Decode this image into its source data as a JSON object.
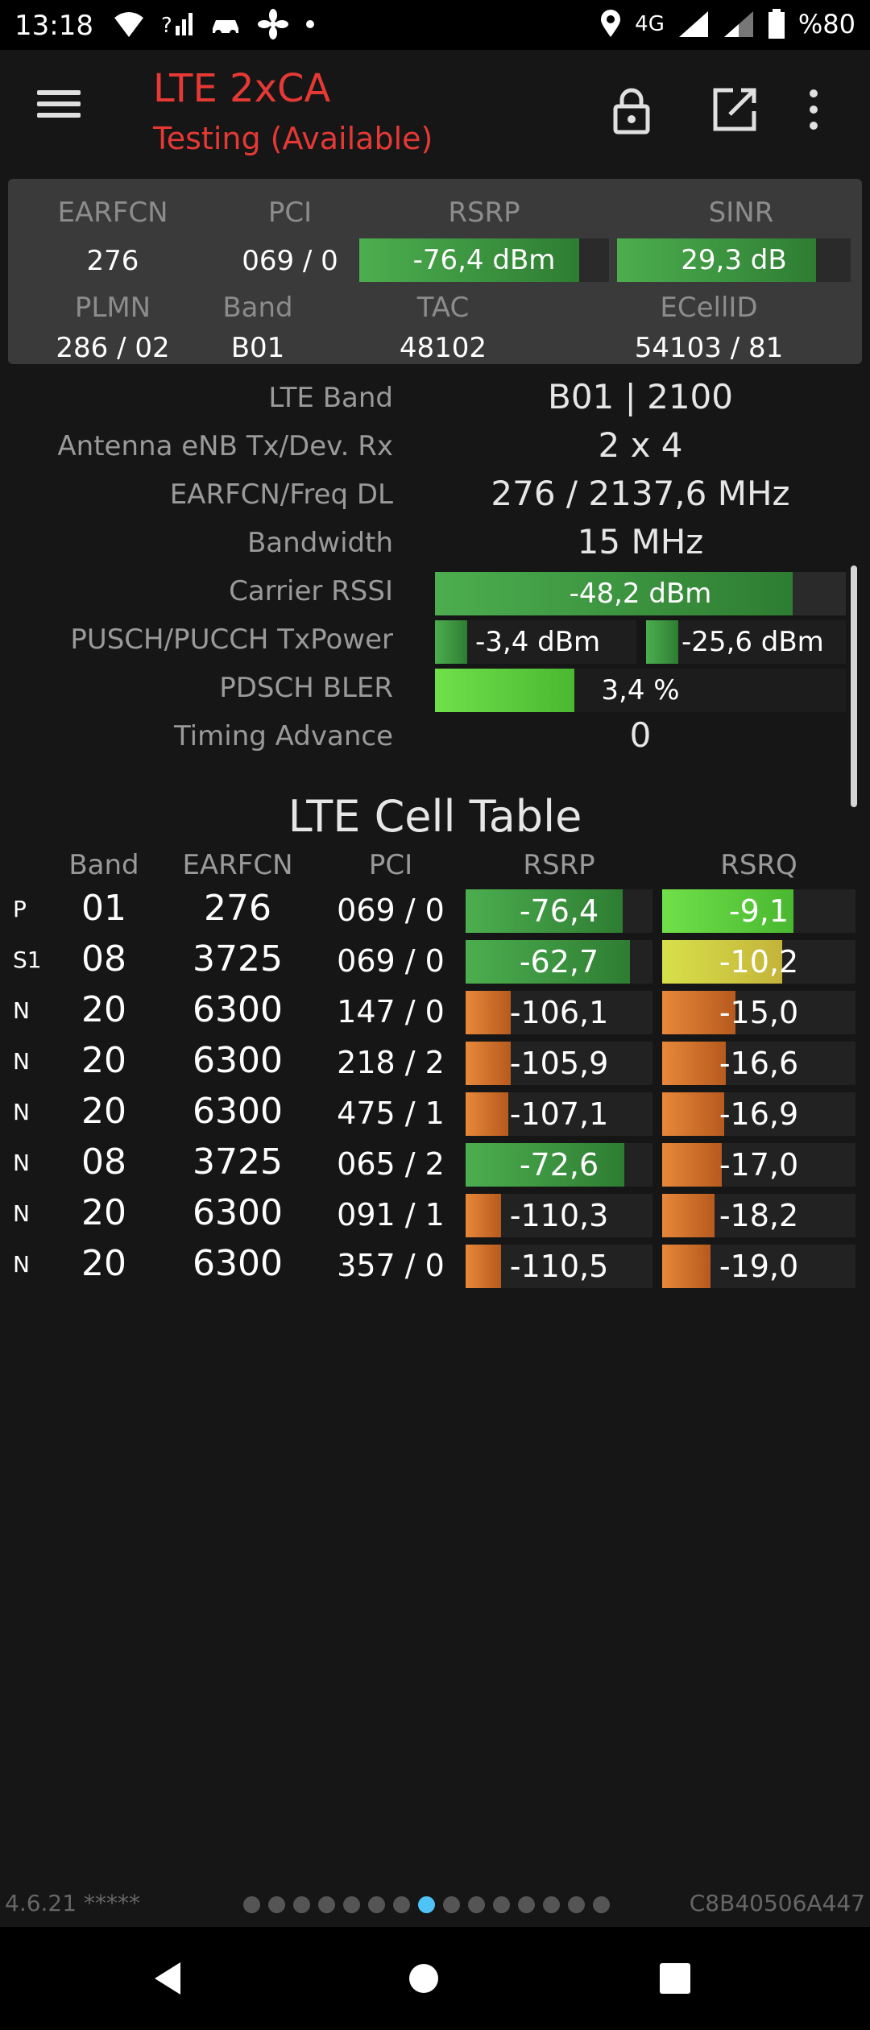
{
  "status_bar": {
    "time": "13:18",
    "network": "4G",
    "battery": "%80",
    "icons": [
      "wifi-icon",
      "no-signal-icon",
      "car-icon",
      "fan-icon",
      "dot-icon",
      "location-icon",
      "signal-icon",
      "signal-icon-2",
      "battery-icon"
    ]
  },
  "app_bar": {
    "title": "LTE 2xCA",
    "subtitle": "Testing (Available)",
    "title_color": "#e53935",
    "icons": [
      "menu-icon",
      "lock-icon",
      "open-external-icon",
      "more-vert-icon"
    ]
  },
  "summary": {
    "headers": {
      "earfcn": "EARFCN",
      "pci": "PCI",
      "rsrp": "RSRP",
      "sinr": "SINR",
      "plmn": "PLMN",
      "band": "Band",
      "tac": "TAC",
      "ecellid": "ECellID"
    },
    "values": {
      "earfcn": "276",
      "pci": "069 / 0",
      "rsrp": "-76,4 dBm",
      "rsrp_level": 0.88,
      "sinr": "29,3 dB",
      "sinr_level": 0.85,
      "plmn": "286 / 02",
      "band": "B01",
      "tac": "48102",
      "ecellid": "54103 / 81"
    }
  },
  "info": [
    {
      "label": "LTE Band",
      "value": "B01 | 2100"
    },
    {
      "label": "Antenna eNB Tx/Dev. Rx",
      "value": "2 x 4"
    },
    {
      "label": "EARFCN/Freq DL",
      "value": "276 / 2137,6 MHz"
    },
    {
      "label": "Bandwidth",
      "value": "15 MHz"
    }
  ],
  "carrier_rssi": {
    "label": "Carrier RSSI",
    "value": "-48,2 dBm",
    "level": 0.87
  },
  "tx_power": {
    "label": "PUSCH/PUCCH TxPower",
    "pusch": "-3,4 dBm",
    "pusch_level": 0.16,
    "pucch": "-25,6 dBm",
    "pucch_level": 0.16
  },
  "bler": {
    "label": "PDSCH BLER",
    "value": "3,4 %",
    "level": 0.34
  },
  "timing_advance": {
    "label": "Timing Advance",
    "value": "0"
  },
  "cell_table": {
    "title": "LTE Cell Table",
    "columns": [
      "Band",
      "EARFCN",
      "PCI",
      "RSRP",
      "RSRQ"
    ],
    "rows": [
      {
        "type": "P",
        "band": "01",
        "earfcn": "276",
        "pci": "069 / 0",
        "rsrp": "-76,4",
        "rsrp_level": 0.84,
        "rsrp_color": "green",
        "rsrq": "-9,1",
        "rsrq_level": 0.68,
        "rsrq_color": "lime"
      },
      {
        "type": "S1",
        "band": "08",
        "earfcn": "3725",
        "pci": "069 / 0",
        "rsrp": "-62,7",
        "rsrp_level": 0.88,
        "rsrp_color": "green",
        "rsrq": "-10,2",
        "rsrq_level": 0.62,
        "rsrq_color": "yellow"
      },
      {
        "type": "N",
        "band": "20",
        "earfcn": "6300",
        "pci": "147 / 0",
        "rsrp": "-106,1",
        "rsrp_level": 0.24,
        "rsrp_color": "orange",
        "rsrq": "-15,0",
        "rsrq_level": 0.38,
        "rsrq_color": "orange"
      },
      {
        "type": "N",
        "band": "20",
        "earfcn": "6300",
        "pci": "218 / 2",
        "rsrp": "-105,9",
        "rsrp_level": 0.24,
        "rsrp_color": "orange",
        "rsrq": "-16,6",
        "rsrq_level": 0.33,
        "rsrq_color": "orange"
      },
      {
        "type": "N",
        "band": "20",
        "earfcn": "6300",
        "pci": "475 / 1",
        "rsrp": "-107,1",
        "rsrp_level": 0.23,
        "rsrp_color": "orange",
        "rsrq": "-16,9",
        "rsrq_level": 0.32,
        "rsrq_color": "orange"
      },
      {
        "type": "N",
        "band": "08",
        "earfcn": "3725",
        "pci": "065 / 2",
        "rsrp": "-72,6",
        "rsrp_level": 0.85,
        "rsrp_color": "green",
        "rsrq": "-17,0",
        "rsrq_level": 0.31,
        "rsrq_color": "orange"
      },
      {
        "type": "N",
        "band": "20",
        "earfcn": "6300",
        "pci": "091 / 1",
        "rsrp": "-110,3",
        "rsrp_level": 0.19,
        "rsrp_color": "orange",
        "rsrq": "-18,2",
        "rsrq_level": 0.27,
        "rsrq_color": "orange"
      },
      {
        "type": "N",
        "band": "20",
        "earfcn": "6300",
        "pci": "357 / 0",
        "rsrp": "-110,5",
        "rsrp_level": 0.19,
        "rsrp_color": "orange",
        "rsrq": "-19,0",
        "rsrq_level": 0.25,
        "rsrq_color": "orange"
      }
    ]
  },
  "footer": {
    "version": "4.6.21 *****",
    "device_id": "C8B40506A447",
    "page_count": 15,
    "active_page": 8
  },
  "nav_bar": {
    "icons": [
      "back-icon",
      "home-icon",
      "recents-icon"
    ]
  }
}
